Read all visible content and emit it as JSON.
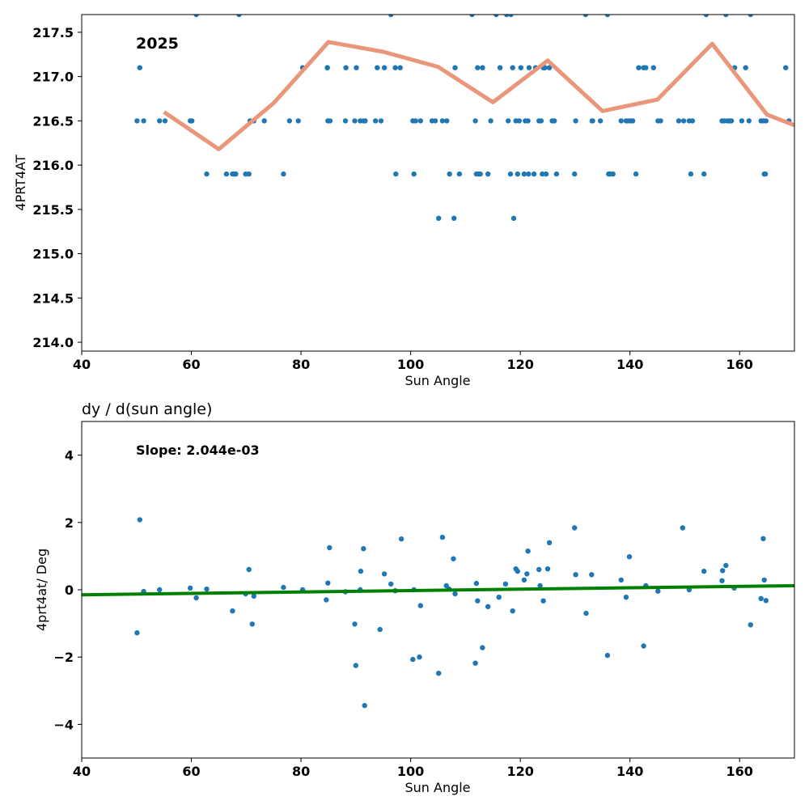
{
  "chart_data": [
    {
      "type": "scatter",
      "title": "",
      "annotation": "2025",
      "xlabel": "Sun Angle",
      "ylabel": "4PRT4AT",
      "xlim": [
        40,
        170
      ],
      "ylim": [
        213.9,
        217.7
      ],
      "xticks": [
        40,
        60,
        80,
        100,
        120,
        140,
        160
      ],
      "yticks": [
        214.0,
        214.5,
        215.0,
        215.5,
        216.0,
        216.5,
        217.0,
        217.5
      ],
      "grid": false,
      "series": [
        {
          "kind": "points",
          "color": "#1f77b4",
          "x": [
            50.1,
            50.6,
            51.3,
            54.2,
            55.2,
            59.8,
            60.1,
            60.9,
            62.8,
            66.4,
            67.5,
            67.8,
            68.1,
            68.7,
            69.9,
            70.5,
            70.7,
            71.4,
            73.3,
            76.8,
            77.9,
            79.5,
            80.3,
            84.8,
            84.8,
            84.9,
            85.3,
            88.1,
            88.2,
            89.8,
            90.1,
            90.8,
            91.4,
            91.7,
            93.6,
            93.9,
            94.6,
            95.2,
            96.4,
            97.2,
            97.3,
            98.1,
            100.4,
            100.6,
            100.9,
            101.8,
            103.9,
            104.5,
            105.1,
            105.8,
            106.6,
            107.1,
            107.9,
            108.1,
            108.9,
            111.2,
            111.8,
            112.0,
            112.2,
            112.4,
            112.7,
            113.1,
            114.1,
            114.6,
            115.6,
            116.3,
            117.5,
            117.8,
            118.2,
            118.3,
            118.6,
            118.8,
            119.2,
            119.5,
            119.8,
            120.1,
            120.7,
            120.9,
            121.4,
            121.5,
            121.6,
            122.5,
            122.8,
            123.4,
            123.8,
            124.0,
            124.2,
            124.5,
            124.7,
            125.3,
            125.8,
            126.2,
            126.6,
            129.9,
            130.1,
            131.9,
            133.1,
            133.2,
            134.6,
            135.9,
            136.1,
            136.4,
            136.9,
            138.4,
            139.3,
            139.6,
            140.1,
            140.5,
            141.1,
            141.6,
            142.5,
            142.9,
            144.3,
            145.1,
            145.6,
            148.9,
            149.8,
            150.8,
            151.1,
            151.4,
            153.5,
            153.9,
            156.8,
            157.2,
            157.5,
            157.8,
            158.2,
            158.5,
            159.1,
            160.4,
            161.1,
            161.7,
            162.0,
            163.9,
            164.3,
            164.5,
            164.7,
            164.8,
            168.4,
            169.0
          ],
          "y": [
            216.5,
            217.1,
            216.5,
            216.5,
            216.5,
            216.5,
            216.5,
            217.7,
            215.9,
            215.9,
            215.9,
            215.9,
            215.9,
            217.7,
            215.9,
            215.9,
            216.5,
            216.5,
            216.5,
            215.9,
            216.5,
            216.5,
            217.1,
            217.1,
            217.1,
            216.5,
            216.5,
            216.5,
            217.1,
            216.5,
            217.1,
            216.5,
            216.5,
            216.5,
            216.5,
            217.1,
            216.5,
            217.1,
            217.7,
            217.1,
            215.9,
            217.1,
            216.5,
            215.9,
            216.5,
            216.5,
            216.5,
            216.5,
            215.4,
            216.5,
            216.5,
            215.9,
            215.4,
            217.1,
            215.9,
            217.7,
            216.5,
            215.9,
            217.1,
            215.9,
            215.9,
            217.1,
            215.9,
            216.5,
            217.7,
            217.1,
            217.7,
            216.5,
            215.9,
            217.7,
            217.1,
            215.4,
            216.5,
            215.9,
            216.5,
            217.1,
            215.9,
            216.5,
            216.5,
            215.9,
            217.1,
            215.9,
            217.1,
            216.5,
            216.5,
            215.9,
            217.1,
            217.1,
            215.9,
            217.1,
            216.5,
            216.5,
            215.9,
            215.9,
            216.5,
            217.7,
            216.5,
            216.5,
            216.5,
            217.7,
            215.9,
            215.9,
            215.9,
            216.5,
            216.5,
            216.5,
            216.5,
            216.5,
            215.9,
            217.1,
            217.1,
            217.1,
            217.1,
            216.5,
            216.5,
            216.5,
            216.5,
            216.5,
            215.9,
            216.5,
            215.9,
            217.7,
            216.5,
            216.5,
            217.7,
            216.5,
            216.5,
            216.5,
            217.1,
            216.5,
            217.1,
            216.5,
            217.7,
            216.5,
            216.5,
            215.9,
            215.9,
            216.5,
            217.1,
            216.5
          ]
        },
        {
          "kind": "line",
          "color": "#e9967a",
          "x": [
            55,
            65,
            75,
            85,
            95,
            105,
            115,
            125,
            135,
            145,
            155,
            165,
            170
          ],
          "y": [
            216.6,
            216.18,
            216.7,
            217.39,
            217.28,
            217.11,
            216.71,
            217.18,
            216.61,
            216.74,
            217.37,
            216.57,
            216.45
          ]
        }
      ]
    },
    {
      "type": "scatter",
      "title": "dy / d(sun angle)",
      "annotation": "Slope: 2.044e-03",
      "xlabel": "Sun Angle",
      "ylabel": "4prt4at/ Deg",
      "xlim": [
        40,
        170
      ],
      "ylim": [
        -5,
        5
      ],
      "xticks": [
        40,
        60,
        80,
        100,
        120,
        140,
        160
      ],
      "yticks": [
        -4,
        -2,
        0,
        2,
        4
      ],
      "grid": false,
      "series": [
        {
          "kind": "points",
          "color": "#1f77b4",
          "x": [
            50.1,
            50.6,
            51.3,
            54.2,
            59.8,
            60.9,
            62.8,
            67.5,
            69.9,
            70.5,
            71.1,
            71.4,
            76.8,
            80.3,
            84.6,
            84.9,
            85.2,
            88.1,
            89.8,
            90.0,
            90.8,
            90.9,
            91.4,
            91.6,
            94.4,
            95.2,
            96.4,
            97.2,
            98.3,
            100.4,
            100.6,
            101.6,
            101.8,
            105.1,
            105.8,
            106.5,
            107.0,
            107.8,
            108.1,
            111.8,
            112.0,
            112.2,
            113.1,
            114.1,
            116.1,
            117.3,
            118.6,
            119.2,
            119.5,
            120.7,
            121.2,
            121.4,
            123.4,
            123.6,
            124.2,
            125.0,
            125.3,
            129.9,
            130.1,
            132.0,
            133.0,
            135.9,
            138.4,
            139.3,
            139.9,
            142.5,
            142.9,
            145.1,
            149.6,
            150.8,
            153.5,
            156.8,
            156.9,
            157.5,
            159.0,
            162.0,
            163.9,
            164.3,
            164.5,
            164.8
          ],
          "y": [
            -1.28,
            2.08,
            -0.05,
            0.0,
            0.05,
            -0.24,
            0.02,
            -0.63,
            -0.12,
            0.6,
            -1.02,
            -0.19,
            0.07,
            0.0,
            -0.3,
            0.2,
            1.25,
            -0.06,
            -1.02,
            -2.25,
            0.0,
            0.55,
            1.22,
            -3.44,
            -1.18,
            0.47,
            0.17,
            -0.03,
            1.51,
            -2.07,
            0.0,
            -2.0,
            -0.47,
            -2.48,
            1.56,
            0.12,
            0.02,
            0.92,
            -0.12,
            -2.18,
            0.19,
            -0.33,
            -1.72,
            -0.5,
            -0.22,
            0.17,
            -0.63,
            0.62,
            0.55,
            0.29,
            0.47,
            1.15,
            0.6,
            0.12,
            -0.33,
            0.62,
            1.4,
            1.84,
            0.45,
            -0.7,
            0.45,
            -1.95,
            0.29,
            -0.22,
            0.98,
            -1.67,
            0.12,
            -0.04,
            1.84,
            0.0,
            0.55,
            0.27,
            0.57,
            0.72,
            0.05,
            -1.04,
            -0.26,
            1.52,
            0.29,
            -0.32
          ]
        },
        {
          "kind": "line",
          "color": "#008000",
          "x": [
            40,
            170
          ],
          "y": [
            -0.15,
            0.12
          ]
        }
      ]
    }
  ]
}
